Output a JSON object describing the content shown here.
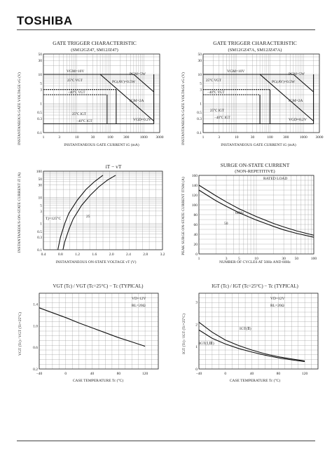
{
  "header": {
    "logo": "TOSHIBA"
  },
  "charts": [
    {
      "title": "GATE TRIGGER CHARACTERISTIC",
      "subtitle": "(SM12GZ47, SM12JZ47)",
      "xlabel": "INSTANTANEOUS GATE CURRENT  iG  (mA)",
      "ylabel": "INSTANTANEOUS GATE VOLTAGE  vG  (V)",
      "xticks": [
        "1",
        "3",
        "10",
        "30",
        "100",
        "300",
        "1000",
        "3000"
      ],
      "yticks": [
        "0.1",
        "0.3",
        "0.5",
        "1",
        "3",
        "5",
        "10",
        "30",
        "50"
      ],
      "annotations": [
        "VGM=10V",
        "PGM=5W",
        "PG(AV)=0.5W",
        "25°C VGT",
        "−40°C VGT",
        "IGM=2A",
        "25°C IGT",
        "−40°C IGT",
        "VGD=0.2V"
      ]
    },
    {
      "title": "GATE TRIGGER CHARACTERISTIC",
      "subtitle": "(SM12GZ47A, SM12JZ47A)",
      "xlabel": "INSTANTANEOUS GATE CURRENT  iG  (mA)",
      "ylabel": "INSTANTANEOUS GATE VOLTAGE  vG  (V)",
      "xticks": [
        "1",
        "3",
        "10",
        "30",
        "100",
        "300",
        "1000",
        "3000"
      ],
      "yticks": [
        "0.1",
        "0.3",
        "0.5",
        "1",
        "3",
        "5",
        "10",
        "30",
        "50"
      ],
      "annotations": [
        "VGM=10V",
        "PGM=5W",
        "PG(AV)=0.5W",
        "25°C VGT",
        "−40°C VGT",
        "IGM=2A",
        "25°C IGT",
        "−40°C IGT",
        "VGD=0.2V"
      ]
    },
    {
      "title": "iT − vT",
      "xlabel": "INSTANTANEOUS ON-STATE VOLTAGE  vT  (V)",
      "ylabel": "INSTANTANEOUS ON-STATE CURRENT  iT  (A)",
      "xticks": [
        "0.4",
        "0.8",
        "1.2",
        "1.6",
        "2.0",
        "2.4",
        "2.8",
        "3.2"
      ],
      "yticks": [
        "0.1",
        "0.3",
        "0.5",
        "1",
        "3",
        "5",
        "10",
        "30",
        "50",
        "100"
      ],
      "annotations": [
        "Tj=125°C",
        "25"
      ]
    },
    {
      "title": "SURGE ON-STATE CURRENT",
      "subtitle": "(NON-REPETITIVE)",
      "xlabel": "NUMBER OF CYCLES AT 50Hz AND 60Hz",
      "ylabel": "PEAK SURGE ON-STATE CURRENT  ITSM  (A)",
      "xticks": [
        "1",
        "3",
        "5",
        "10",
        "30",
        "50",
        "100"
      ],
      "yticks": [
        "0",
        "20",
        "40",
        "60",
        "80",
        "100",
        "120",
        "140",
        "160"
      ],
      "annotations": [
        "RATED LOAD",
        "60Hz",
        "50"
      ]
    },
    {
      "title": "VGT (Tc) / VGT (Tc=25°C) − Tc  (TYPICAL)",
      "xlabel": "CASE TEMPERATURE  Tc  (°C)",
      "ylabel": "VGT (Tc) / VGT (Tc=25°C)",
      "xticks": [
        "−40",
        "0",
        "40",
        "80",
        "120"
      ],
      "yticks": [
        "0.2",
        "0.6",
        "1.0",
        "1.4"
      ],
      "annotations": [
        "VD=12V",
        "RL=20Ω"
      ]
    },
    {
      "title": "IGT (Tc) / IGT (Tc=25°C) − Tc  (TYPICAL)",
      "xlabel": "CASE TEMPERATURE  Tc  (°C)",
      "ylabel": "IGT (Tc) / IGT (Tc=25°C)",
      "xticks": [
        "−40",
        "0",
        "40",
        "80",
        "120"
      ],
      "yticks": [
        "0",
        "1",
        "2",
        "3"
      ],
      "annotations": [
        "VD=12V",
        "RL=20Ω",
        "IGT(Ⅱ)",
        "IGT(Ⅰ,Ⅲ)"
      ]
    }
  ],
  "chart_data": [
    {
      "type": "line",
      "title": "GATE TRIGGER CHARACTERISTIC",
      "xlabel": "INSTANTANEOUS GATE CURRENT  iG  (mA)",
      "ylabel": "INSTANTANEOUS GATE VOLTAGE  vG  (V)",
      "xscale": "log",
      "yscale": "log",
      "xlim": [
        1,
        3000
      ],
      "ylim": [
        0.1,
        50
      ],
      "series": [
        {
          "name": "PGM=5W",
          "x": [
            500,
            2000
          ],
          "y": [
            10,
            2.5
          ]
        },
        {
          "name": "PG(AV)=0.5W",
          "x": [
            50,
            2000
          ],
          "y": [
            10,
            0.25
          ]
        }
      ]
    },
    {
      "type": "line",
      "title": "GATE TRIGGER CHARACTERISTIC",
      "xlabel": "INSTANTANEOUS GATE CURRENT  iG  (mA)",
      "ylabel": "INSTANTANEOUS GATE VOLTAGE  vG  (V)",
      "xscale": "log",
      "yscale": "log",
      "xlim": [
        1,
        3000
      ],
      "ylim": [
        0.1,
        50
      ],
      "series": [
        {
          "name": "PGM=5W",
          "x": [
            500,
            2000
          ],
          "y": [
            10,
            2.5
          ]
        },
        {
          "name": "PG(AV)=0.5W",
          "x": [
            50,
            2000
          ],
          "y": [
            10,
            0.25
          ]
        }
      ]
    },
    {
      "type": "line",
      "title": "iT − vT",
      "xlabel": "INSTANTANEOUS ON-STATE VOLTAGE  vT  (V)",
      "ylabel": "INSTANTANEOUS ON-STATE CURRENT  iT  (A)",
      "yscale": "log",
      "xlim": [
        0.4,
        3.2
      ],
      "ylim": [
        0.1,
        100
      ],
      "series": [
        {
          "name": "Tj=125°C",
          "x": [
            0.74,
            0.8,
            0.9,
            1.0,
            1.2,
            1.4,
            1.6,
            1.8
          ],
          "y": [
            0.1,
            0.3,
            1,
            2.5,
            8,
            20,
            40,
            70
          ]
        },
        {
          "name": "25",
          "x": [
            0.86,
            0.9,
            1.0,
            1.1,
            1.3,
            1.5,
            1.7,
            1.9,
            2.1
          ],
          "y": [
            0.1,
            0.2,
            0.6,
            1.5,
            5,
            12,
            25,
            45,
            70
          ]
        }
      ]
    },
    {
      "type": "line",
      "title": "SURGE ON-STATE CURRENT",
      "xlabel": "NUMBER OF CYCLES AT 50Hz AND 60Hz",
      "ylabel": "PEAK SURGE ON-STATE CURRENT  ITSM  (A)",
      "xscale": "log",
      "xlim": [
        1,
        100
      ],
      "ylim": [
        0,
        160
      ],
      "series": [
        {
          "name": "60Hz",
          "x": [
            1,
            2,
            3,
            5,
            10,
            20,
            30,
            50,
            100
          ],
          "y": [
            140,
            118,
            106,
            92,
            76,
            62,
            55,
            47,
            38
          ]
        },
        {
          "name": "50",
          "x": [
            1,
            2,
            3,
            5,
            10,
            20,
            30,
            50,
            100
          ],
          "y": [
            130,
            108,
            97,
            84,
            69,
            56,
            49,
            42,
            34
          ]
        }
      ]
    },
    {
      "type": "line",
      "title": "VGT (Tc) / VGT (Tc=25°C) − Tc  (TYPICAL)",
      "xlabel": "CASE TEMPERATURE  Tc  (°C)",
      "ylabel": "VGT (Tc) / VGT (Tc=25°C)",
      "xlim": [
        -40,
        140
      ],
      "ylim": [
        0.2,
        1.6
      ],
      "series": [
        {
          "x": [
            -40,
            -20,
            0,
            20,
            40,
            60,
            80,
            100,
            120
          ],
          "y": [
            1.33,
            1.24,
            1.15,
            1.05,
            0.96,
            0.87,
            0.78,
            0.7,
            0.62
          ]
        }
      ]
    },
    {
      "type": "line",
      "title": "IGT (Tc) / IGT (Tc=25°C) − Tc  (TYPICAL)",
      "xlabel": "CASE TEMPERATURE  Tc  (°C)",
      "ylabel": "IGT (Tc) / IGT (Tc=25°C)",
      "xlim": [
        -40,
        140
      ],
      "ylim": [
        0,
        3.4
      ],
      "series": [
        {
          "name": "IGT(Ⅱ)",
          "x": [
            -40,
            -20,
            0,
            20,
            40,
            60,
            80,
            100,
            120
          ],
          "y": [
            2.1,
            1.65,
            1.3,
            1.05,
            0.85,
            0.68,
            0.55,
            0.45,
            0.36
          ]
        },
        {
          "name": "IGT(Ⅰ,Ⅲ)",
          "x": [
            -40,
            -20,
            0,
            20,
            40,
            60,
            80,
            100,
            120
          ],
          "y": [
            1.75,
            1.38,
            1.12,
            0.92,
            0.76,
            0.62,
            0.5,
            0.41,
            0.33
          ]
        }
      ]
    }
  ]
}
